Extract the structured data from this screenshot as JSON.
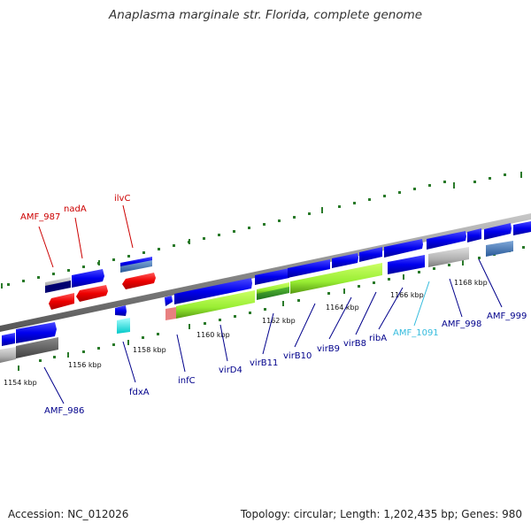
{
  "title": "Anaplasma marginale str. Florida, complete genome",
  "footer": {
    "accession": "Accession: NC_012026",
    "summary": "Topology: circular; Length: 1,202,435 bp; Genes: 980"
  },
  "colors": {
    "forward_gene": "#0000ee",
    "reverse_gene": "#ee0000",
    "hypothetical": "#b0b0b0",
    "rna_gene": "#00e0e0",
    "highlight_gene": "#99ee33",
    "pink_gene": "#e88080",
    "tick": "#2a7a2a",
    "label_blue": "#00008b",
    "label_red": "#cc0000",
    "label_cyan": "#33bbdd"
  },
  "scale_ticks": [
    "1154 kbp",
    "1156 kbp",
    "1158 kbp",
    "1160 kbp",
    "1162 kbp",
    "1164 kbp",
    "1166 kbp",
    "1168 kbp"
  ],
  "gene_labels": [
    {
      "name": "AMF_987",
      "color": "red"
    },
    {
      "name": "nadA",
      "color": "red"
    },
    {
      "name": "ilvC",
      "color": "red"
    },
    {
      "name": "AMF_986",
      "color": "blue"
    },
    {
      "name": "fdxA",
      "color": "blue"
    },
    {
      "name": "infC",
      "color": "blue"
    },
    {
      "name": "virD4",
      "color": "blue"
    },
    {
      "name": "virB11",
      "color": "blue"
    },
    {
      "name": "virB10",
      "color": "blue"
    },
    {
      "name": "virB9",
      "color": "blue"
    },
    {
      "name": "virB8",
      "color": "blue"
    },
    {
      "name": "ribA",
      "color": "blue"
    },
    {
      "name": "AMF_1091",
      "color": "cyan"
    },
    {
      "name": "AMF_998",
      "color": "blue"
    },
    {
      "name": "AMF_999",
      "color": "blue"
    }
  ]
}
